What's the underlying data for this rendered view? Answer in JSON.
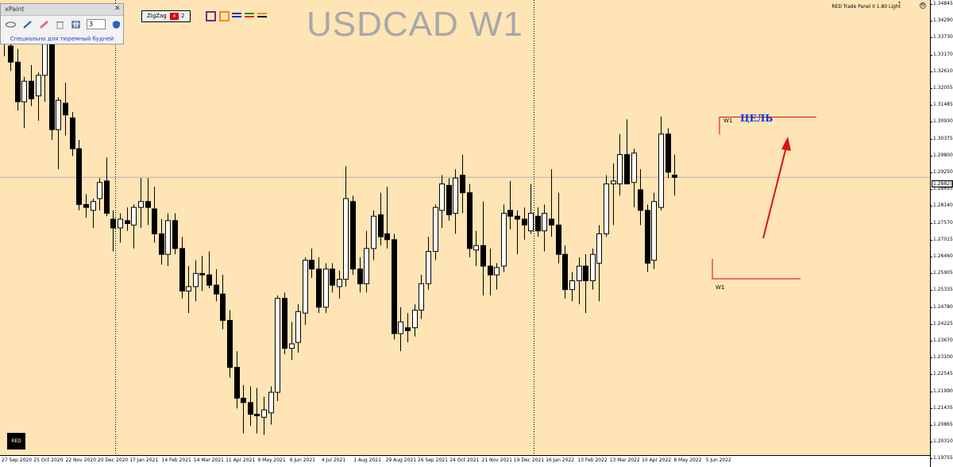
{
  "chart": {
    "symbol_title": "USDCAD W1",
    "panel_name": "RED Trade Panel II 1.80 Light",
    "current_price": "1.28825",
    "red_badge": "RED",
    "target_label": "ЦЕЛЬ",
    "w1_top_label": "W1",
    "w1_bottom_label": "W1",
    "colors": {
      "background": "#ffe4b5",
      "bull": "#ffffff",
      "bear": "#000000",
      "annotation": "#dd0000",
      "target_text": "#0033ee"
    }
  },
  "xpaint": {
    "title": "xPaint",
    "close": "✕",
    "width_value": "3",
    "note": "Специально для тюремный будней",
    "tools": [
      "ellipse-icon",
      "pencil-icon",
      "eraser-icon",
      "trash-icon",
      "calendar-grid-icon",
      "shield-icon"
    ]
  },
  "zigzag": {
    "label": "ZigZag",
    "value": "2"
  },
  "price_axis": {
    "ticks": [
      "1.34845",
      "1.34290",
      "1.33730",
      "1.33170",
      "1.32610",
      "1.32055",
      "1.31485",
      "1.30930",
      "1.30375",
      "1.29800",
      "1.29250",
      "1.28695",
      "1.28140",
      "1.27570",
      "1.27015",
      "1.26460",
      "1.25905",
      "1.25335",
      "1.24780",
      "1.24225",
      "1.23670",
      "1.23100",
      "1.22545",
      "1.21990",
      "1.21435",
      "1.20865",
      "1.20310",
      "1.19755"
    ]
  },
  "time_axis": {
    "labels": [
      "27 Sep 2020",
      "25 Oct 2020",
      "22 Nov 2020",
      "20 Dec 2020",
      "17 Jan 2021",
      "14 Feb 2021",
      "14 Mar 2021",
      "11 Apr 2021",
      "9 May 2021",
      "6 Jun 2021",
      "4 Jul 2021",
      "1 Aug 2021",
      "29 Aug 2021",
      "26 Sep 2021",
      "24 Oct 2021",
      "21 Nov 2021",
      "19 Dec 2021",
      "16 Jan 2022",
      "13 Feb 2022",
      "13 Mar 2022",
      "10 Apr 2022",
      "8 May 2022",
      "5 Jun 2022"
    ]
  },
  "chart_data": {
    "type": "candlestick",
    "title": "USDCAD W1",
    "ylim": [
      1.1955,
      1.3484
    ],
    "period_separators": [
      "3 Jan 2021",
      "2 Jan 2022"
    ],
    "current_price": 1.28825,
    "annotations": {
      "target_level": 1.3088,
      "low_level": 1.2537
    },
    "candles": [
      {
        "o": 1.3395,
        "h": 1.3465,
        "l": 1.3295,
        "c": 1.334
      },
      {
        "o": 1.333,
        "h": 1.3425,
        "l": 1.3245,
        "c": 1.3275
      },
      {
        "o": 1.3275,
        "h": 1.332,
        "l": 1.311,
        "c": 1.314
      },
      {
        "o": 1.314,
        "h": 1.3225,
        "l": 1.305,
        "c": 1.321
      },
      {
        "o": 1.321,
        "h": 1.3265,
        "l": 1.3125,
        "c": 1.315
      },
      {
        "o": 1.316,
        "h": 1.324,
        "l": 1.3075,
        "c": 1.323
      },
      {
        "o": 1.323,
        "h": 1.3395,
        "l": 1.314,
        "c": 1.335
      },
      {
        "o": 1.335,
        "h": 1.3385,
        "l": 1.301,
        "c": 1.3045
      },
      {
        "o": 1.3045,
        "h": 1.3155,
        "l": 1.291,
        "c": 1.3145
      },
      {
        "o": 1.3135,
        "h": 1.3205,
        "l": 1.3025,
        "c": 1.3095
      },
      {
        "o": 1.3085,
        "h": 1.3105,
        "l": 1.2955,
        "c": 1.298
      },
      {
        "o": 1.298,
        "h": 1.301,
        "l": 1.277,
        "c": 1.279
      },
      {
        "o": 1.279,
        "h": 1.2825,
        "l": 1.2745,
        "c": 1.278
      },
      {
        "o": 1.277,
        "h": 1.281,
        "l": 1.271,
        "c": 1.28
      },
      {
        "o": 1.281,
        "h": 1.288,
        "l": 1.277,
        "c": 1.2865
      },
      {
        "o": 1.287,
        "h": 1.295,
        "l": 1.275,
        "c": 1.276
      },
      {
        "o": 1.274,
        "h": 1.277,
        "l": 1.263,
        "c": 1.271
      },
      {
        "o": 1.271,
        "h": 1.276,
        "l": 1.266,
        "c": 1.274
      },
      {
        "o": 1.2735,
        "h": 1.278,
        "l": 1.27,
        "c": 1.2725
      },
      {
        "o": 1.272,
        "h": 1.279,
        "l": 1.264,
        "c": 1.278
      },
      {
        "o": 1.278,
        "h": 1.288,
        "l": 1.271,
        "c": 1.28
      },
      {
        "o": 1.28,
        "h": 1.288,
        "l": 1.272,
        "c": 1.278
      },
      {
        "o": 1.2775,
        "h": 1.285,
        "l": 1.266,
        "c": 1.269
      },
      {
        "o": 1.269,
        "h": 1.274,
        "l": 1.2585,
        "c": 1.262
      },
      {
        "o": 1.262,
        "h": 1.276,
        "l": 1.258,
        "c": 1.2735
      },
      {
        "o": 1.2735,
        "h": 1.276,
        "l": 1.262,
        "c": 1.264
      },
      {
        "o": 1.264,
        "h": 1.268,
        "l": 1.247,
        "c": 1.2495
      },
      {
        "o": 1.2495,
        "h": 1.258,
        "l": 1.242,
        "c": 1.251
      },
      {
        "o": 1.251,
        "h": 1.26,
        "l": 1.246,
        "c": 1.2555
      },
      {
        "o": 1.2555,
        "h": 1.2615,
        "l": 1.2495,
        "c": 1.255
      },
      {
        "o": 1.255,
        "h": 1.263,
        "l": 1.2505,
        "c": 1.2515
      },
      {
        "o": 1.2515,
        "h": 1.257,
        "l": 1.246,
        "c": 1.2485
      },
      {
        "o": 1.2485,
        "h": 1.255,
        "l": 1.2365,
        "c": 1.2395
      },
      {
        "o": 1.2395,
        "h": 1.243,
        "l": 1.22,
        "c": 1.2235
      },
      {
        "o": 1.2235,
        "h": 1.229,
        "l": 1.2095,
        "c": 1.213
      },
      {
        "o": 1.213,
        "h": 1.2175,
        "l": 1.201,
        "c": 1.2115
      },
      {
        "o": 1.2115,
        "h": 1.217,
        "l": 1.2035,
        "c": 1.2075
      },
      {
        "o": 1.2075,
        "h": 1.2165,
        "l": 1.201,
        "c": 1.207
      },
      {
        "o": 1.2065,
        "h": 1.2135,
        "l": 1.2005,
        "c": 1.209
      },
      {
        "o": 1.208,
        "h": 1.217,
        "l": 1.204,
        "c": 1.215
      },
      {
        "o": 1.215,
        "h": 1.248,
        "l": 1.212,
        "c": 1.247
      },
      {
        "o": 1.247,
        "h": 1.249,
        "l": 1.228,
        "c": 1.23
      },
      {
        "o": 1.23,
        "h": 1.239,
        "l": 1.226,
        "c": 1.2315
      },
      {
        "o": 1.232,
        "h": 1.245,
        "l": 1.2285,
        "c": 1.2425
      },
      {
        "o": 1.242,
        "h": 1.261,
        "l": 1.238,
        "c": 1.26
      },
      {
        "o": 1.26,
        "h": 1.264,
        "l": 1.254,
        "c": 1.257
      },
      {
        "o": 1.257,
        "h": 1.261,
        "l": 1.242,
        "c": 1.244
      },
      {
        "o": 1.244,
        "h": 1.259,
        "l": 1.242,
        "c": 1.257
      },
      {
        "o": 1.257,
        "h": 1.259,
        "l": 1.249,
        "c": 1.2515
      },
      {
        "o": 1.251,
        "h": 1.2565,
        "l": 1.247,
        "c": 1.2535
      },
      {
        "o": 1.2535,
        "h": 1.292,
        "l": 1.251,
        "c": 1.281
      },
      {
        "o": 1.28,
        "h": 1.282,
        "l": 1.255,
        "c": 1.257
      },
      {
        "o": 1.257,
        "h": 1.261,
        "l": 1.249,
        "c": 1.252
      },
      {
        "o": 1.252,
        "h": 1.27,
        "l": 1.249,
        "c": 1.264
      },
      {
        "o": 1.264,
        "h": 1.277,
        "l": 1.26,
        "c": 1.275
      },
      {
        "o": 1.2755,
        "h": 1.283,
        "l": 1.265,
        "c": 1.268
      },
      {
        "o": 1.269,
        "h": 1.285,
        "l": 1.264,
        "c": 1.267
      },
      {
        "o": 1.267,
        "h": 1.269,
        "l": 1.233,
        "c": 1.235
      },
      {
        "o": 1.235,
        "h": 1.244,
        "l": 1.229,
        "c": 1.239
      },
      {
        "o": 1.237,
        "h": 1.242,
        "l": 1.232,
        "c": 1.236
      },
      {
        "o": 1.237,
        "h": 1.245,
        "l": 1.234,
        "c": 1.243
      },
      {
        "o": 1.243,
        "h": 1.255,
        "l": 1.24,
        "c": 1.252
      },
      {
        "o": 1.252,
        "h": 1.268,
        "l": 1.25,
        "c": 1.263
      },
      {
        "o": 1.263,
        "h": 1.279,
        "l": 1.26,
        "c": 1.278
      },
      {
        "o": 1.277,
        "h": 1.289,
        "l": 1.271,
        "c": 1.286
      },
      {
        "o": 1.2855,
        "h": 1.288,
        "l": 1.2735,
        "c": 1.2755
      },
      {
        "o": 1.276,
        "h": 1.291,
        "l": 1.269,
        "c": 1.288
      },
      {
        "o": 1.289,
        "h": 1.296,
        "l": 1.276,
        "c": 1.283
      },
      {
        "o": 1.283,
        "h": 1.286,
        "l": 1.261,
        "c": 1.264
      },
      {
        "o": 1.2635,
        "h": 1.27,
        "l": 1.258,
        "c": 1.265
      },
      {
        "o": 1.265,
        "h": 1.28,
        "l": 1.248,
        "c": 1.258
      },
      {
        "o": 1.258,
        "h": 1.264,
        "l": 1.248,
        "c": 1.255
      },
      {
        "o": 1.255,
        "h": 1.259,
        "l": 1.25,
        "c": 1.2575
      },
      {
        "o": 1.258,
        "h": 1.279,
        "l": 1.256,
        "c": 1.276
      },
      {
        "o": 1.277,
        "h": 1.287,
        "l": 1.2705,
        "c": 1.275
      },
      {
        "o": 1.275,
        "h": 1.277,
        "l": 1.262,
        "c": 1.274
      },
      {
        "o": 1.274,
        "h": 1.278,
        "l": 1.267,
        "c": 1.272
      },
      {
        "o": 1.27,
        "h": 1.286,
        "l": 1.269,
        "c": 1.276
      },
      {
        "o": 1.275,
        "h": 1.278,
        "l": 1.268,
        "c": 1.27
      },
      {
        "o": 1.27,
        "h": 1.279,
        "l": 1.263,
        "c": 1.276
      },
      {
        "o": 1.274,
        "h": 1.291,
        "l": 1.268,
        "c": 1.272
      },
      {
        "o": 1.272,
        "h": 1.283,
        "l": 1.259,
        "c": 1.262
      },
      {
        "o": 1.262,
        "h": 1.265,
        "l": 1.247,
        "c": 1.25
      },
      {
        "o": 1.25,
        "h": 1.256,
        "l": 1.246,
        "c": 1.253
      },
      {
        "o": 1.253,
        "h": 1.261,
        "l": 1.245,
        "c": 1.258
      },
      {
        "o": 1.258,
        "h": 1.262,
        "l": 1.242,
        "c": 1.253
      },
      {
        "o": 1.253,
        "h": 1.264,
        "l": 1.25,
        "c": 1.262
      },
      {
        "o": 1.259,
        "h": 1.272,
        "l": 1.246,
        "c": 1.269
      },
      {
        "o": 1.269,
        "h": 1.289,
        "l": 1.268,
        "c": 1.286
      },
      {
        "o": 1.286,
        "h": 1.293,
        "l": 1.272,
        "c": 1.287
      },
      {
        "o": 1.286,
        "h": 1.303,
        "l": 1.282,
        "c": 1.296
      },
      {
        "o": 1.296,
        "h": 1.308,
        "l": 1.287,
        "c": 1.286
      },
      {
        "o": 1.2865,
        "h": 1.298,
        "l": 1.278,
        "c": 1.2965
      },
      {
        "o": 1.284,
        "h": 1.291,
        "l": 1.272,
        "c": 1.277
      },
      {
        "o": 1.277,
        "h": 1.279,
        "l": 1.256,
        "c": 1.259
      },
      {
        "o": 1.26,
        "h": 1.283,
        "l": 1.257,
        "c": 1.28
      },
      {
        "o": 1.278,
        "h": 1.309,
        "l": 1.277,
        "c": 1.303
      },
      {
        "o": 1.303,
        "h": 1.305,
        "l": 1.288,
        "c": 1.29
      },
      {
        "o": 1.289,
        "h": 1.296,
        "l": 1.282,
        "c": 1.28825
      }
    ]
  }
}
